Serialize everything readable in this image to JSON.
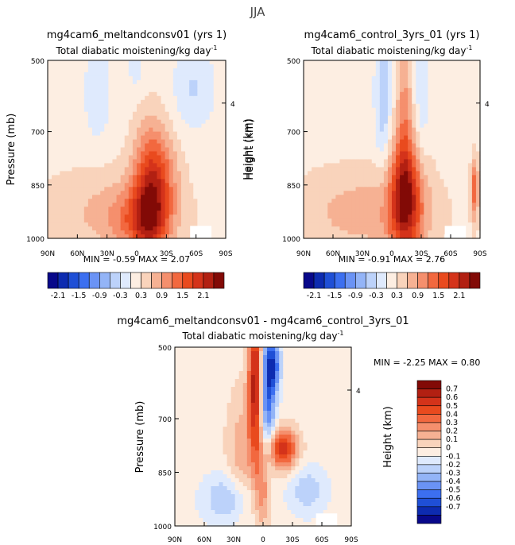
{
  "page_title": "JJA",
  "chart_data": [
    {
      "type": "heatmap",
      "id": "p1",
      "title": "mg4cam6_meltandconsv01 (yrs 1)",
      "subtitle": "Total diabatic moistening/kg day",
      "subtitle_superscript": "-1",
      "ylabel": "Pressure (mb)",
      "ylabel_right": "Height (km)",
      "x_categories": [
        "90N",
        "60N",
        "30N",
        "0",
        "30S",
        "60S",
        "90S"
      ],
      "y_ticks": [
        "500",
        "700",
        "850",
        "1000"
      ],
      "y_right_ticks": [
        "4"
      ],
      "min_label": "MIN =",
      "min_value": "-0.59",
      "max_label": "MAX =",
      "max_value": "2.07",
      "colorbar_ticks": [
        "-2.1",
        "-1.5",
        "-0.9",
        "-0.3",
        "0.3",
        "0.9",
        "1.5",
        "2.1"
      ],
      "colorbar_colors": [
        "#08088a",
        "#0d2bb0",
        "#1f4fd6",
        "#3c6ff0",
        "#6a93f5",
        "#93b4f7",
        "#bcd2fa",
        "#dfeafd",
        "#fdeee2",
        "#f9d3bb",
        "#f6b193",
        "#f58f6d",
        "#f2683f",
        "#e94a1e",
        "#d4331a",
        "#b22012",
        "#820a06"
      ],
      "fields": [
        {
          "cx": 0.58,
          "cy": 0.74,
          "rx": 0.07,
          "ry": 0.26,
          "amp": 1.7
        },
        {
          "cx": 0.52,
          "cy": 0.9,
          "rx": 0.12,
          "ry": 0.12,
          "amp": 0.8
        },
        {
          "cx": 0.35,
          "cy": 0.85,
          "rx": 0.3,
          "ry": 0.18,
          "amp": 0.45
        },
        {
          "cx": 0.68,
          "cy": 0.62,
          "rx": 0.06,
          "ry": 0.14,
          "amp": 0.35
        },
        {
          "cx": 0.28,
          "cy": 0.18,
          "rx": 0.05,
          "ry": 0.18,
          "amp": -0.4
        },
        {
          "cx": 0.82,
          "cy": 0.15,
          "rx": 0.08,
          "ry": 0.15,
          "amp": -0.45
        },
        {
          "cx": 0.5,
          "cy": 0.06,
          "rx": 0.04,
          "ry": 0.1,
          "amp": -0.25
        }
      ]
    },
    {
      "type": "heatmap",
      "id": "p2",
      "title": "mg4cam6_control_3yrs_01 (yrs 1)",
      "subtitle": "Total diabatic moistening/kg day",
      "subtitle_superscript": "-1",
      "ylabel": "Height (km)",
      "x_categories": [
        "90N",
        "60N",
        "30N",
        "0",
        "30S",
        "60S",
        "90S"
      ],
      "y_ticks": [
        "500",
        "700",
        "850",
        "1000"
      ],
      "y_right_ticks": [
        "4"
      ],
      "min_label": "MIN =",
      "min_value": "-0.91",
      "max_label": "MAX =",
      "max_value": "2.76",
      "colorbar_ticks": [
        "-2.1",
        "-1.5",
        "-0.9",
        "-0.3",
        "0.3",
        "0.9",
        "1.5",
        "2.1"
      ],
      "colorbar_colors": [
        "#08088a",
        "#0d2bb0",
        "#1f4fd6",
        "#3c6ff0",
        "#6a93f5",
        "#93b4f7",
        "#bcd2fa",
        "#dfeafd",
        "#fdeee2",
        "#f9d3bb",
        "#f6b193",
        "#f58f6d",
        "#f2683f",
        "#e94a1e",
        "#d4331a",
        "#b22012",
        "#820a06"
      ],
      "fields": [
        {
          "cx": 0.58,
          "cy": 0.78,
          "rx": 0.07,
          "ry": 0.24,
          "amp": 1.9
        },
        {
          "cx": 0.57,
          "cy": 0.25,
          "rx": 0.03,
          "ry": 0.35,
          "amp": 0.7
        },
        {
          "cx": 0.35,
          "cy": 0.85,
          "rx": 0.3,
          "ry": 0.18,
          "amp": 0.55
        },
        {
          "cx": 0.45,
          "cy": 0.2,
          "rx": 0.03,
          "ry": 0.3,
          "amp": -0.7
        },
        {
          "cx": 0.67,
          "cy": 0.3,
          "rx": 0.03,
          "ry": 0.35,
          "amp": -0.35
        },
        {
          "cx": 0.97,
          "cy": 0.72,
          "rx": 0.015,
          "ry": 0.12,
          "amp": 1.2
        }
      ]
    },
    {
      "type": "heatmap",
      "id": "p3",
      "title": "mg4cam6_meltandconsv01 - mg4cam6_control_3yrs_01",
      "subtitle": "Total diabatic moistening/kg day",
      "subtitle_superscript": "-1",
      "ylabel": "Pressure (mb)",
      "ylabel_right": "Height (km)",
      "x_categories": [
        "90N",
        "60N",
        "30N",
        "0",
        "30S",
        "60S",
        "90S"
      ],
      "y_ticks": [
        "500",
        "700",
        "850",
        "1000"
      ],
      "y_right_ticks": [
        "4"
      ],
      "min_label": "MIN =",
      "min_value": "-2.25",
      "max_label": "MAX =",
      "max_value": "0.80",
      "colorbar_ticks": [
        "0.7",
        "0.6",
        "0.5",
        "0.4",
        "0.3",
        "0.2",
        "0.1",
        "0",
        "-0.1",
        "-0.2",
        "-0.3",
        "-0.4",
        "-0.5",
        "-0.6",
        "-0.7"
      ],
      "colorbar_colors": [
        "#820a06",
        "#b22012",
        "#d4331a",
        "#e94a1e",
        "#f2683f",
        "#f58f6d",
        "#f6b193",
        "#f9d3bb",
        "#fdeee2",
        "#dfeafd",
        "#bcd2fa",
        "#93b4f7",
        "#6a93f5",
        "#3c6ff0",
        "#1f4fd6",
        "#0d2bb0",
        "#08088a"
      ],
      "fields": [
        {
          "cx": 0.46,
          "cy": 0.2,
          "rx": 0.03,
          "ry": 0.3,
          "amp": 0.75
        },
        {
          "cx": 0.61,
          "cy": 0.57,
          "rx": 0.06,
          "ry": 0.08,
          "amp": 0.6
        },
        {
          "cx": 0.52,
          "cy": 0.25,
          "rx": 0.035,
          "ry": 0.25,
          "amp": -0.55
        },
        {
          "cx": 0.56,
          "cy": 0.1,
          "rx": 0.03,
          "ry": 0.1,
          "amp": -0.4
        },
        {
          "cx": 0.3,
          "cy": 0.85,
          "rx": 0.1,
          "ry": 0.1,
          "amp": -0.25
        },
        {
          "cx": 0.75,
          "cy": 0.8,
          "rx": 0.08,
          "ry": 0.1,
          "amp": -0.2
        },
        {
          "cx": 0.38,
          "cy": 0.6,
          "rx": 0.06,
          "ry": 0.25,
          "amp": 0.2
        },
        {
          "cx": 0.5,
          "cy": 0.8,
          "rx": 0.03,
          "ry": 0.15,
          "amp": 0.3
        }
      ]
    }
  ]
}
